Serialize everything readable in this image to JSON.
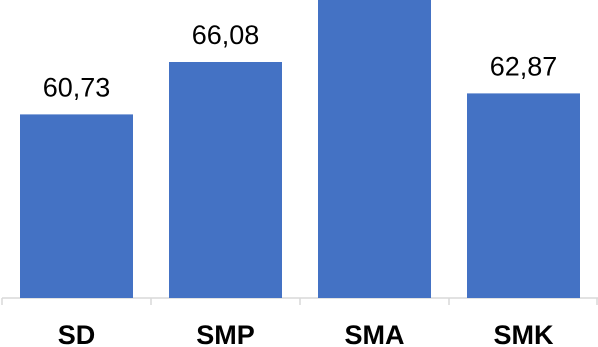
{
  "chart_data": {
    "type": "bar",
    "categories": [
      "SD",
      "SMP",
      "SMA",
      "SMK"
    ],
    "values": [
      60.73,
      66.08,
      72.4,
      62.87
    ],
    "value_labels": [
      "60,73",
      "66,08",
      "",
      "62,87"
    ],
    "ylim": [
      42,
      72.4
    ],
    "bar_color": "#4472C4",
    "axis_color": "#D9D9D9",
    "grid": false,
    "legend": "none"
  }
}
